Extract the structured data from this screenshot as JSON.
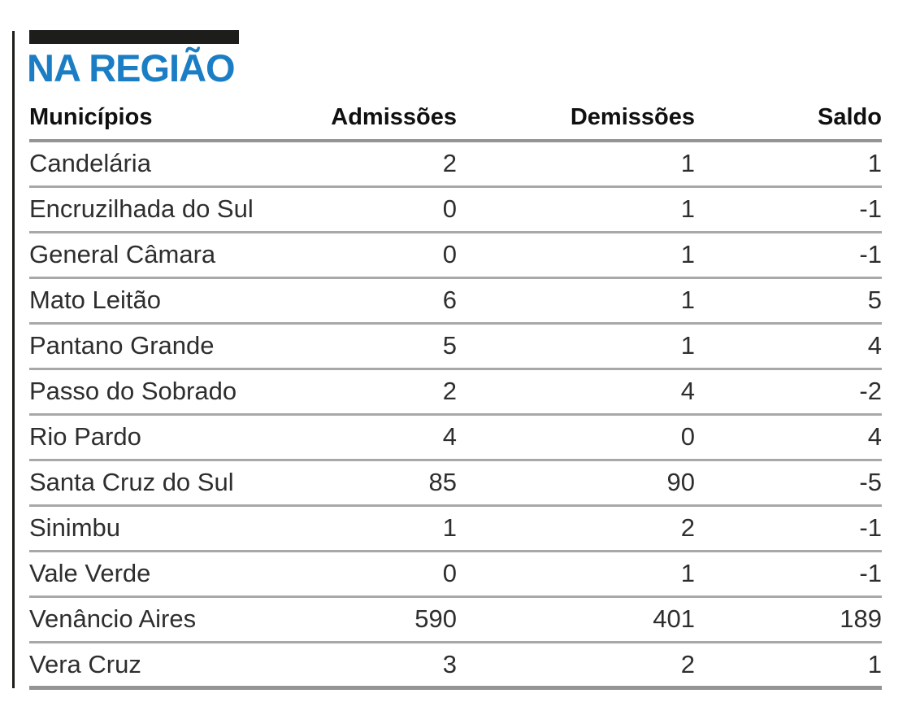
{
  "title": "NA REGIÃO",
  "colors": {
    "accent_blue": "#1b7ec4",
    "bar_black": "#1d1d1b",
    "header_separator_gray": "#949494",
    "row_separator_gray": "#a8a8a8",
    "text_dark": "#2e2e2e"
  },
  "chart_data": {
    "type": "table",
    "title": "NA REGIÃO",
    "columns": [
      "Municípios",
      "Admissões",
      "Demissões",
      "Saldo"
    ],
    "rows": [
      [
        "Candelária",
        "2",
        "1",
        "1"
      ],
      [
        "Encruzilhada do Sul",
        "0",
        "1",
        "-1"
      ],
      [
        "General Câmara",
        "0",
        "1",
        "-1"
      ],
      [
        "Mato Leitão",
        "6",
        "1",
        "5"
      ],
      [
        "Pantano Grande",
        "5",
        "1",
        "4"
      ],
      [
        "Passo do Sobrado",
        "2",
        "4",
        "-2"
      ],
      [
        "Rio Pardo",
        "4",
        "0",
        "4"
      ],
      [
        "Santa Cruz do Sul",
        "85",
        "90",
        "-5"
      ],
      [
        "Sinimbu",
        "1",
        "2",
        "-1"
      ],
      [
        "Vale Verde",
        "0",
        "1",
        "-1"
      ],
      [
        "Venâncio Aires",
        "590",
        "401",
        "189"
      ],
      [
        "Vera Cruz",
        "3",
        "2",
        "1"
      ]
    ]
  }
}
